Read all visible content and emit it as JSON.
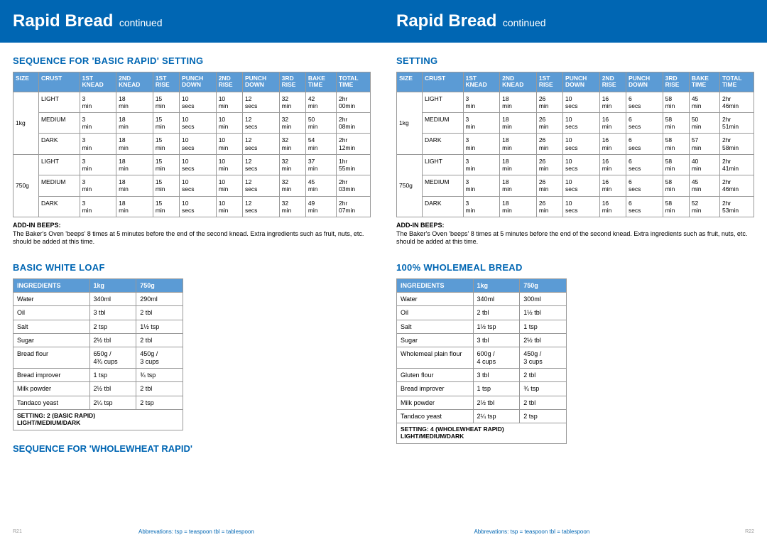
{
  "colors": {
    "brand_blue": "#0066b3",
    "table_header": "#5b9bd5",
    "border": "#999999",
    "white": "#ffffff"
  },
  "header": {
    "main": "Rapid Bread",
    "sub": "continued"
  },
  "left": {
    "seqTitle": "SEQUENCE FOR 'BASIC RAPID' SETTING",
    "seqHeaders": [
      "SIZE",
      "CRUST",
      "1ST KNEAD",
      "2ND KNEAD",
      "1ST RISE",
      "PUNCH DOWN",
      "2ND RISE",
      "PUNCH DOWN",
      "3RD RISE",
      "BAKE TIME",
      "TOTAL TIME"
    ],
    "seqGroups": [
      {
        "size": "1kg",
        "rows": [
          [
            "LIGHT",
            "3 min",
            "18 min",
            "15 min",
            "10 secs",
            "10 min",
            "12 secs",
            "32 min",
            "42 min",
            "2hr 00min"
          ],
          [
            "MEDIUM",
            "3 min",
            "18 min",
            "15 min",
            "10 secs",
            "10 min",
            "12 secs",
            "32 min",
            "50 min",
            "2hr 08min"
          ],
          [
            "DARK",
            "3 min",
            "18 min",
            "15 min",
            "10 secs",
            "10 min",
            "12 secs",
            "32 min",
            "54 min",
            "2hr 12min"
          ]
        ]
      },
      {
        "size": "750g",
        "rows": [
          [
            "LIGHT",
            "3 min",
            "18 min",
            "15 min",
            "10 secs",
            "10 min",
            "12 secs",
            "32 min",
            "37 min",
            "1hr 55min"
          ],
          [
            "MEDIUM",
            "3 min",
            "18 min",
            "15 min",
            "10 secs",
            "10 min",
            "12 secs",
            "32 min",
            "45 min",
            "2hr 03min"
          ],
          [
            "DARK",
            "3 min",
            "18 min",
            "15 min",
            "10 secs",
            "10 min",
            "12 secs",
            "32 min",
            "49 min",
            "2hr 07min"
          ]
        ]
      }
    ],
    "addinTitle": "ADD-IN BEEPS:",
    "addinText": "The Baker's Oven 'beeps' 8 times at 5 minutes before the end of the second knead. Extra ingredients such as fruit, nuts, etc. should be added at this time.",
    "recipeTitle": "BASIC WHITE LOAF",
    "recipeHeaders": [
      "INGREDIENTS",
      "1kg",
      "750g"
    ],
    "recipeRows": [
      [
        "Water",
        "340ml",
        "290ml"
      ],
      [
        "Oil",
        "3 tbl",
        "2 tbl"
      ],
      [
        "Salt",
        "2 tsp",
        "1½ tsp"
      ],
      [
        "Sugar",
        "2½ tbl",
        "2 tbl"
      ],
      [
        "Bread flour",
        "650g / 4¾ cups",
        "450g / 3 cups"
      ],
      [
        "Bread improver",
        "1 tsp",
        "¾ tsp"
      ],
      [
        "Milk powder",
        "2½ tbl",
        "2 tbl"
      ],
      [
        "Tandaco yeast",
        "2¼ tsp",
        "2 tsp"
      ]
    ],
    "settingRow": "SETTING: 2 (BASIC RAPID)\nLIGHT/MEDIUM/DARK",
    "bottomTitle": "SEQUENCE FOR 'WHOLEWHEAT RAPID'",
    "pageNum": "R21",
    "abbrev": "Abbrevations:    tsp = teaspoon    tbl = tablespoon"
  },
  "right": {
    "seqTitle": "SETTING",
    "seqHeaders": [
      "SIZE",
      "CRUST",
      "1ST KNEAD",
      "2ND KNEAD",
      "1ST RISE",
      "PUNCH DOWN",
      "2ND RISE",
      "PUNCH DOWN",
      "3RD RISE",
      "BAKE TIME",
      "TOTAL TIME"
    ],
    "seqGroups": [
      {
        "size": "1kg",
        "rows": [
          [
            "LIGHT",
            "3 min",
            "18 min",
            "26 min",
            "10 secs",
            "16 min",
            "6 secs",
            "58 min",
            "45 min",
            "2hr 46min"
          ],
          [
            "MEDIUM",
            "3 min",
            "18 min",
            "26 min",
            "10 secs",
            "16 min",
            "6 secs",
            "58 min",
            "50 min",
            "2hr 51min"
          ],
          [
            "DARK",
            "3 min",
            "18 min",
            "26 min",
            "10 secs",
            "16 min",
            "6 secs",
            "58 min",
            "57 min",
            "2hr 58min"
          ]
        ]
      },
      {
        "size": "750g",
        "rows": [
          [
            "LIGHT",
            "3 min",
            "18 min",
            "26 min",
            "10 secs",
            "16 min",
            "6 secs",
            "58 min",
            "40 min",
            "2hr 41min"
          ],
          [
            "MEDIUM",
            "3 min",
            "18 min",
            "26 min",
            "10 secs",
            "16 min",
            "6 secs",
            "58 min",
            "45 min",
            "2hr 46min"
          ],
          [
            "DARK",
            "3 min",
            "18 min",
            "26 min",
            "10 secs",
            "16 min",
            "6 secs",
            "58 min",
            "52 min",
            "2hr 53min"
          ]
        ]
      }
    ],
    "addinTitle": "ADD-IN BEEPS:",
    "addinText": "The Baker's Oven 'beeps' 8 times at 5 minutes before the end of the second knead. Extra ingredients such as fruit, nuts, etc. should be added at this time.",
    "recipeTitle": "100% WHOLEMEAL BREAD",
    "recipeHeaders": [
      "INGREDIENTS",
      "1kg",
      "750g"
    ],
    "recipeRows": [
      [
        "Water",
        "340ml",
        "300ml"
      ],
      [
        "Oil",
        "2 tbl",
        "1½ tbl"
      ],
      [
        "Salt",
        "1½ tsp",
        "1 tsp"
      ],
      [
        "Sugar",
        "3 tbl",
        "2½ tbl"
      ],
      [
        "Wholemeal plain flour",
        "600g / 4 cups",
        "450g / 3 cups"
      ],
      [
        "Gluten flour",
        "3 tbl",
        "2 tbl"
      ],
      [
        "Bread improver",
        "1 tsp",
        "¾ tsp"
      ],
      [
        "Milk powder",
        "2½ tbl",
        "2 tbl"
      ],
      [
        "Tandaco yeast",
        "2¼ tsp",
        "2 tsp"
      ]
    ],
    "settingRow": "SETTING: 4 (WHOLEWHEAT RAPID)\nLIGHT/MEDIUM/DARK",
    "pageNum": "R22",
    "abbrev": "Abbrevations:    tsp = teaspoon    tbl = tablespoon"
  }
}
